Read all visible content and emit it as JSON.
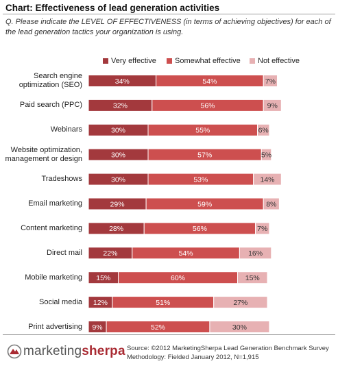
{
  "header": {
    "title": "Chart: Effectiveness of lead generation activities",
    "question": "Q. Please indicate the LEVEL OF EFFECTIVENESS (in terms of achieving objectives) for each of the lead generation tactics your organization is using."
  },
  "colors": {
    "very": "#a3393d",
    "somewhat": "#cd4f4f",
    "not": "#e7b1b3",
    "logo_accent": "#a92b33"
  },
  "chart_data": {
    "type": "bar",
    "orientation": "horizontal",
    "stacked": true,
    "legend_position": "top",
    "categories": [
      [
        "Search engine",
        "optimization (SEO)"
      ],
      [
        "Paid search (PPC)"
      ],
      [
        "Webinars"
      ],
      [
        "Website optimization,",
        "management or design"
      ],
      [
        "Tradeshows"
      ],
      [
        "Email marketing"
      ],
      [
        "Content marketing"
      ],
      [
        "Direct mail"
      ],
      [
        "Mobile marketing"
      ],
      [
        "Social media"
      ],
      [
        "Print advertising"
      ]
    ],
    "series": [
      {
        "name": "Very effective",
        "values": [
          34,
          32,
          30,
          30,
          30,
          29,
          28,
          22,
          15,
          12,
          9
        ]
      },
      {
        "name": "Somewhat effective",
        "values": [
          54,
          56,
          55,
          57,
          53,
          59,
          56,
          54,
          60,
          51,
          52
        ]
      },
      {
        "name": "Not effective",
        "values": [
          7,
          9,
          6,
          5,
          14,
          8,
          7,
          16,
          15,
          27,
          30
        ]
      }
    ],
    "value_suffix": "%"
  },
  "logo": {
    "part1": "marketing",
    "part2": "sherpa"
  },
  "source": {
    "line1": "Source: ©2012 MarketingSherpa Lead Generation Benchmark Survey",
    "line2": "Methodology: Fielded January 2012, N=1,915"
  }
}
